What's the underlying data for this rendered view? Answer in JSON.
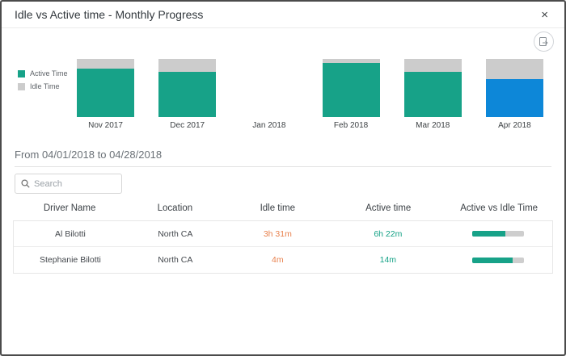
{
  "modal": {
    "title": "Idle vs Active time - Monthly Progress",
    "close_label": "×"
  },
  "colors": {
    "active": "#17a288",
    "idle": "#cccccc",
    "selected_active": "#0d87d8",
    "idle_text": "#e8814d",
    "active_text": "#13a185",
    "progress_track": "#cecece"
  },
  "chart_data": {
    "type": "bar",
    "stacked": true,
    "unit": "percent_of_total_time",
    "categories": [
      "Nov 2017",
      "Dec 2017",
      "Jan 2018",
      "Feb 2018",
      "Mar 2018",
      "Apr 2018"
    ],
    "series": [
      {
        "name": "Active Time",
        "values": [
          84,
          78,
          0,
          93,
          78,
          65
        ]
      },
      {
        "name": "Idle Time",
        "values": [
          16,
          22,
          0,
          7,
          22,
          35
        ]
      }
    ],
    "selected_category": "Apr 2018",
    "legend": [
      "Active Time",
      "Idle Time"
    ],
    "legend_position": "left",
    "ylim": [
      0,
      100
    ],
    "grid": false
  },
  "period": {
    "label": "From 04/01/2018 to 04/28/2018"
  },
  "search": {
    "placeholder": "Search",
    "value": ""
  },
  "table": {
    "columns": [
      "Driver Name",
      "Location",
      "Idle time",
      "Active time",
      "Active vs Idle Time"
    ],
    "rows": [
      {
        "driver": "Al Bilotti",
        "location": "North CA",
        "idle": "3h 31m",
        "active": "6h 22m",
        "active_pct": 64
      },
      {
        "driver": "Stephanie Bilotti",
        "location": "North CA",
        "idle": "4m",
        "active": "14m",
        "active_pct": 78
      }
    ]
  }
}
